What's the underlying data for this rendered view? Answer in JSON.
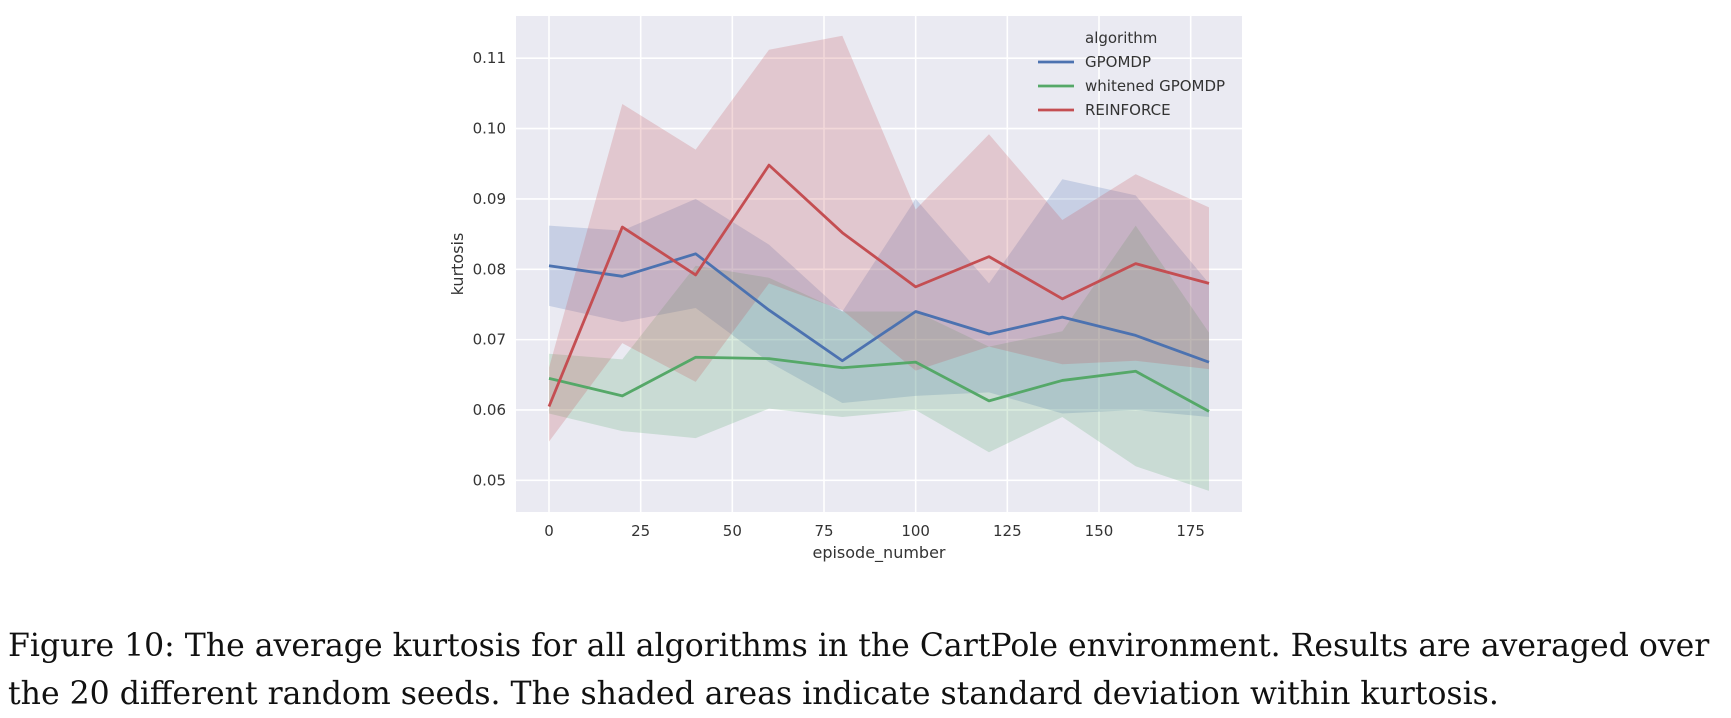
{
  "chart_data": {
    "type": "line",
    "xlabel": "episode_number",
    "ylabel": "kurtosis",
    "xlim": [
      -9,
      189
    ],
    "ylim": [
      0.0455,
      0.116
    ],
    "xticks": [
      0,
      25,
      50,
      75,
      100,
      125,
      150,
      175
    ],
    "yticks": [
      0.05,
      0.06,
      0.07,
      0.08,
      0.09,
      0.1,
      0.11
    ],
    "ytick_labels": [
      "0.05",
      "0.06",
      "0.07",
      "0.08",
      "0.09",
      "0.10",
      "0.11"
    ],
    "grid": true,
    "legend_title": "algorithm",
    "legend_position": "top-right",
    "x": [
      0,
      20,
      40,
      60,
      80,
      100,
      120,
      140,
      160,
      180
    ],
    "series": [
      {
        "name": "GPOMDP",
        "color": "#4c72b0",
        "values": [
          0.0805,
          0.079,
          0.0822,
          0.0742,
          0.067,
          0.074,
          0.0708,
          0.0732,
          0.0706,
          0.0668
        ],
        "lower": [
          0.0748,
          0.0725,
          0.0745,
          0.0668,
          0.061,
          0.062,
          0.0625,
          0.0595,
          0.06,
          0.059
        ],
        "upper": [
          0.0862,
          0.0855,
          0.09,
          0.0835,
          0.074,
          0.09,
          0.078,
          0.0928,
          0.0905,
          0.078
        ]
      },
      {
        "name": "whitened GPOMDP",
        "color": "#55a868",
        "values": [
          0.0645,
          0.062,
          0.0675,
          0.0673,
          0.066,
          0.0668,
          0.0613,
          0.0642,
          0.0655,
          0.0598
        ],
        "lower": [
          0.0595,
          0.057,
          0.056,
          0.0602,
          0.059,
          0.06,
          0.054,
          0.059,
          0.052,
          0.0485
        ],
        "upper": [
          0.068,
          0.0672,
          0.0805,
          0.0788,
          0.074,
          0.074,
          0.069,
          0.0712,
          0.0862,
          0.071
        ]
      },
      {
        "name": "REINFORCE",
        "color": "#c44e52",
        "values": [
          0.0605,
          0.086,
          0.0792,
          0.0948,
          0.0852,
          0.0775,
          0.0818,
          0.0758,
          0.0808,
          0.078
        ],
        "lower": [
          0.0555,
          0.0695,
          0.064,
          0.078,
          0.0742,
          0.0656,
          0.069,
          0.0665,
          0.067,
          0.0658
        ],
        "upper": [
          0.066,
          0.1035,
          0.097,
          0.1112,
          0.1132,
          0.0885,
          0.0992,
          0.087,
          0.0935,
          0.0888
        ]
      }
    ]
  },
  "caption": "Figure 10: The average kurtosis for all algorithms in the CartPole environment. Results are averaged over the 20 different random seeds. The shaded areas indicate standard deviation within kurtosis."
}
